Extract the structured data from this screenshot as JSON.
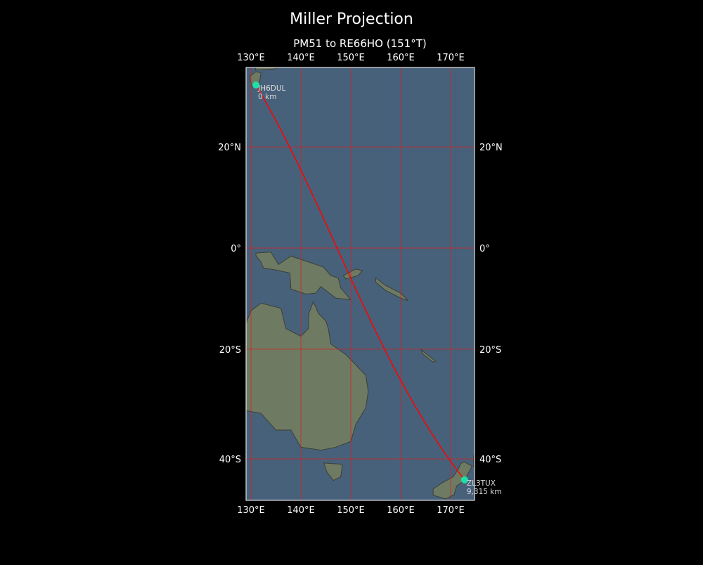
{
  "title": "Miller Projection",
  "subtitle": "PM51 to RE66HO (151°T)",
  "projection": "miller",
  "extent": {
    "lon": [
      128.9,
      174.6
    ],
    "lat": [
      -47.3,
      34.8
    ]
  },
  "colors": {
    "background": "#000000",
    "ocean": "#48617a",
    "land": "#6f7a62",
    "grid": "#d42020",
    "path": "#ff0000",
    "marker": "#1de0a8",
    "label": "#dddddd"
  },
  "grid": {
    "lons": [
      130,
      140,
      150,
      160,
      170
    ],
    "lats": [
      20,
      0,
      -20,
      -40
    ],
    "lon_labels": [
      "130°E",
      "140°E",
      "150°E",
      "160°E",
      "170°E"
    ],
    "lat_labels": [
      "20°N",
      "0°",
      "20°S",
      "40°S"
    ]
  },
  "stations": [
    {
      "call": "JH6DUL",
      "distance": "0 km",
      "lon": 131.0,
      "lat": 31.6
    },
    {
      "call": "ZL3TUX",
      "distance": "9,315 km",
      "lon": 172.8,
      "lat": -43.5
    }
  ]
}
